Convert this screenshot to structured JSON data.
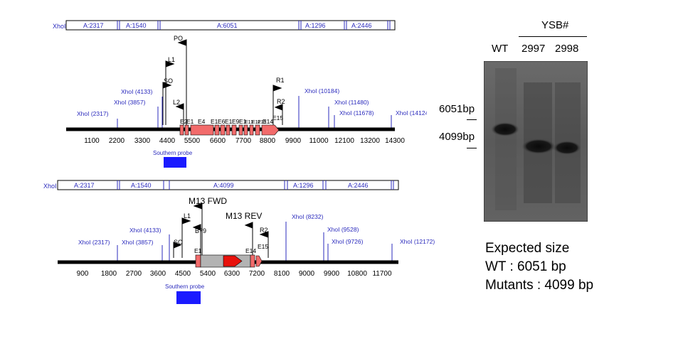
{
  "top_map": {
    "fragment_site": "XhoI",
    "fragments": [
      "A:2317",
      "A:1540",
      "A:6051",
      "A:1296",
      "A:2446"
    ],
    "sites": [
      {
        "label": "XhoI (2317)"
      },
      {
        "label": "XhoI (3857)"
      },
      {
        "label": "XhoI (4133)"
      },
      {
        "label": "XhoI (10184)"
      },
      {
        "label": "XhoI (11480)"
      },
      {
        "label": "XhoI (11678)"
      },
      {
        "label": "XhoI (14124)"
      }
    ],
    "primers": [
      "PO",
      "L1",
      "SO",
      "L2",
      "R1",
      "R2"
    ],
    "exons": [
      "E2",
      "E1",
      "E4",
      "E1",
      "E6",
      "E1",
      "E9",
      "E1",
      "E11",
      "E12",
      "E13",
      "E14",
      "E15"
    ],
    "ticks": [
      "1100",
      "2200",
      "3300",
      "4400",
      "5500",
      "6600",
      "7700",
      "8800",
      "9900",
      "11000",
      "12100",
      "13200",
      "14300"
    ],
    "probe_label": "Southern probe"
  },
  "bottom_map": {
    "fragment_site": "XhoI",
    "fragments": [
      "A:2317",
      "A:1540",
      "A:4099",
      "A:1296",
      "A:2446"
    ],
    "sites": [
      {
        "label": "XhoI (2317)"
      },
      {
        "label": "XhoI (3857)"
      },
      {
        "label": "XhoI (4133)"
      },
      {
        "label": "XhoI (8232)"
      },
      {
        "label": "XhoI (9528)"
      },
      {
        "label": "XhoI (9726)"
      },
      {
        "label": "XhoI (12172)"
      }
    ],
    "primers": [
      "L1",
      "B79",
      "SO",
      "M13 FWD",
      "M13 REV",
      "R2"
    ],
    "labels": {
      "e1": "E1",
      "e14": "E14",
      "e15": "E15"
    },
    "ticks": [
      "900",
      "1800",
      "2700",
      "3600",
      "4500",
      "5400",
      "6300",
      "7200",
      "8100",
      "9000",
      "9900",
      "10800",
      "11700"
    ],
    "probe_label": "Southern probe"
  },
  "blot": {
    "group_label": "YSB#",
    "lanes": [
      "WT",
      "2997",
      "2998"
    ],
    "markers": [
      "6051bp",
      "4099bp"
    ],
    "bands": [
      {
        "lane": "WT",
        "size_bp": 6051
      },
      {
        "lane": "2997",
        "size_bp": 4099
      },
      {
        "lane": "2998",
        "size_bp": 4099
      }
    ]
  },
  "expected": {
    "title": "Expected size",
    "wt": "WT : 6051 bp",
    "mutants": "Mutants : 4099 bp"
  },
  "colors": {
    "site_line": "#2b2bbd",
    "exon_fill": "#f26b6b",
    "cassette_fill": "#b3b3b3",
    "arrow_red": "#e8120c",
    "probe_fill": "#1a1aff",
    "gel_bg": "#5e5e5e"
  }
}
